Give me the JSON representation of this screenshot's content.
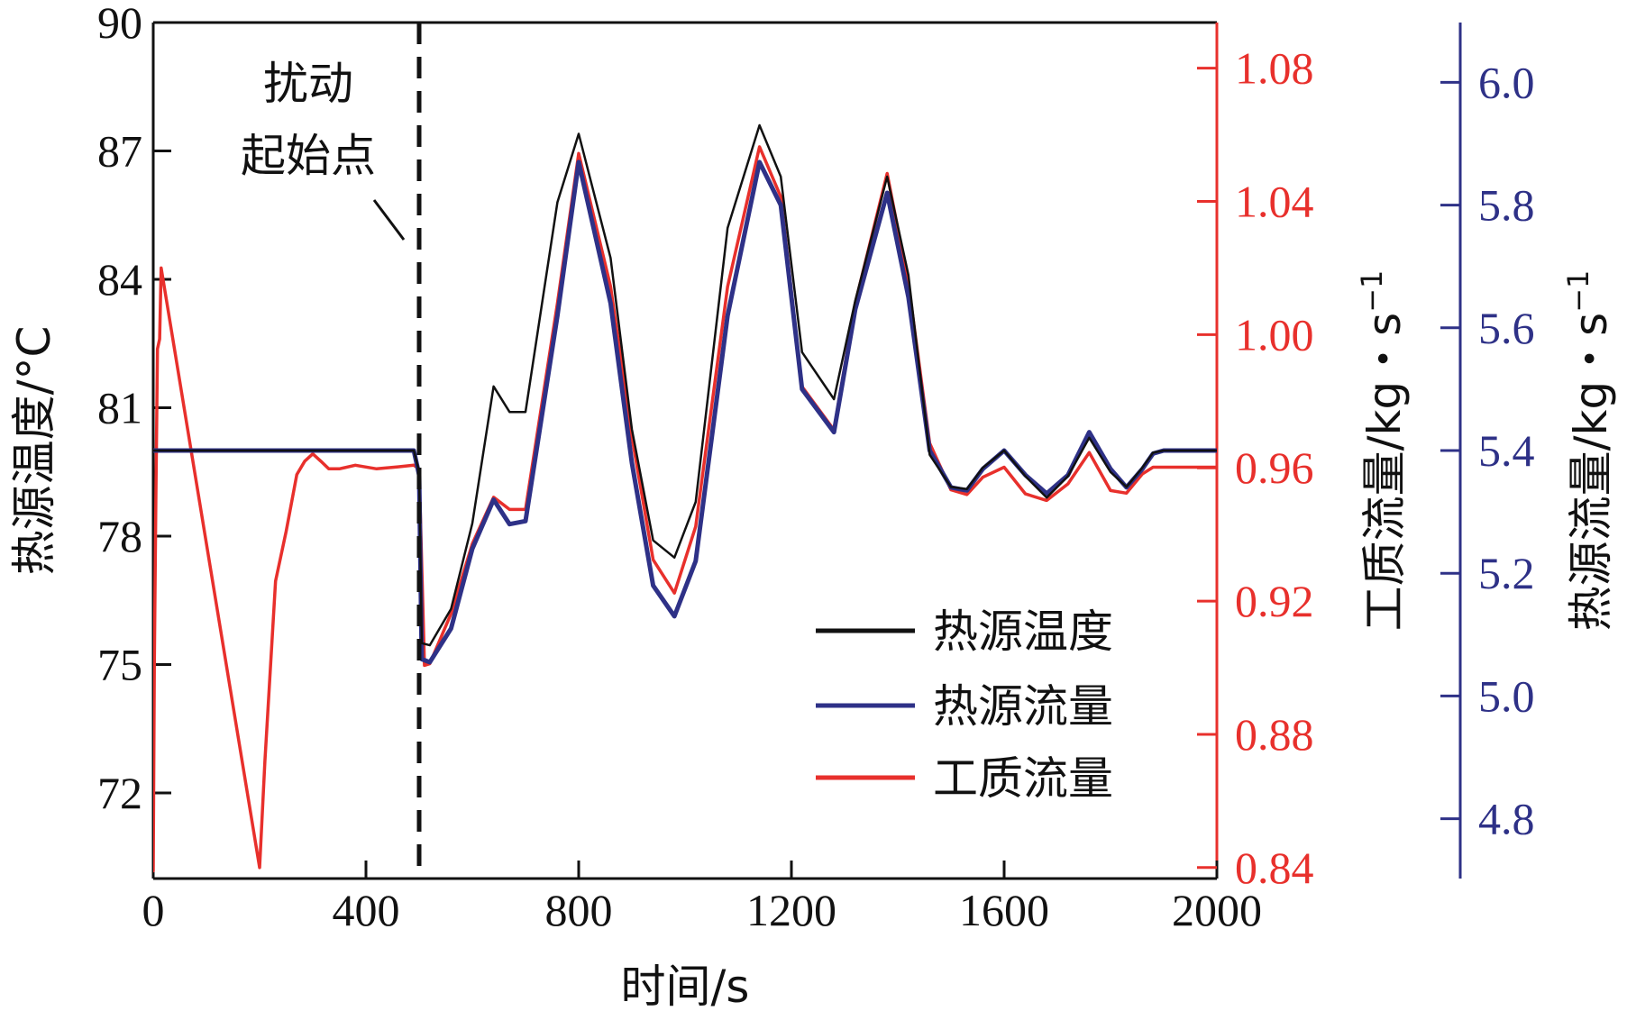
{
  "chart_data": {
    "type": "line",
    "title": "",
    "xlabel": "时间/s",
    "x_ticks": [
      "0",
      "400",
      "800",
      "1200",
      "1600",
      "2000"
    ],
    "xlim": [
      0,
      2000
    ],
    "axes": {
      "left": {
        "label": "热源温度/°C",
        "ylim": [
          70,
          90
        ],
        "ticks": [
          "72",
          "75",
          "78",
          "81",
          "84",
          "87",
          "90"
        ],
        "color": "#111111"
      },
      "right1": {
        "label": "工质流量/kg・s",
        "label_sup": "−1",
        "ylim": [
          0.8367,
          1.0937
        ],
        "ticks": [
          "0.84",
          "0.88",
          "0.92",
          "0.96",
          "1.00",
          "1.04",
          "1.08"
        ],
        "color": "#e8302c"
      },
      "right2": {
        "label": "热源流量/kg・s",
        "label_sup": "−1",
        "ylim": [
          4.7025,
          6.0975
        ],
        "ticks": [
          "4.8",
          "5.0",
          "5.2",
          "5.4",
          "5.6",
          "5.8",
          "6.0"
        ],
        "color": "#2e3187"
      }
    },
    "annotation": {
      "lines": [
        "扰动",
        "起始点"
      ],
      "x": 500
    },
    "legend": {
      "position": "bottom-right",
      "items": [
        {
          "name": "热源温度",
          "color": "#111111"
        },
        {
          "name": "热源流量",
          "color": "#2e3187"
        },
        {
          "name": "工质流量",
          "color": "#e8302c"
        }
      ]
    },
    "series": [
      {
        "name": "工质流量",
        "axis": "right1",
        "color": "#e8302c",
        "x": [
          0,
          2,
          5,
          8,
          12,
          15,
          200,
          210,
          230,
          250,
          270,
          285,
          300,
          315,
          330,
          350,
          380,
          420,
          460,
          490,
          500,
          510,
          520,
          560,
          600,
          640,
          670,
          700,
          760,
          800,
          860,
          900,
          940,
          980,
          1020,
          1080,
          1140,
          1180,
          1220,
          1280,
          1320,
          1380,
          1420,
          1460,
          1500,
          1530,
          1560,
          1600,
          1640,
          1680,
          1720,
          1760,
          1800,
          1830,
          1860,
          1880,
          1900,
          2000
        ],
        "y": [
          0.839,
          0.9,
          0.95,
          0.9957,
          0.9987,
          1.02,
          0.84,
          0.872,
          0.926,
          0.941,
          0.958,
          0.962,
          0.9642,
          0.962,
          0.9597,
          0.9597,
          0.9608,
          0.9597,
          0.9603,
          0.9608,
          0.9597,
          0.9007,
          0.9012,
          0.9162,
          0.9372,
          0.9512,
          0.9475,
          0.9475,
          1.0094,
          1.0544,
          1.0144,
          0.9694,
          0.9324,
          0.9224,
          0.9424,
          1.0144,
          1.0564,
          1.0414,
          0.9844,
          0.9714,
          1.0094,
          1.0484,
          1.0154,
          0.9674,
          0.9534,
          0.952,
          0.9572,
          0.9602,
          0.9522,
          0.9502,
          0.9552,
          0.9646,
          0.9532,
          0.9524,
          0.9582,
          0.9602,
          0.9602,
          0.9602
        ]
      },
      {
        "name": "热源流量",
        "axis": "right2",
        "color": "#2e3187",
        "x": [
          0,
          450,
          490,
          500,
          505,
          520,
          560,
          600,
          640,
          670,
          700,
          760,
          800,
          860,
          900,
          940,
          980,
          1020,
          1080,
          1140,
          1180,
          1220,
          1280,
          1320,
          1380,
          1420,
          1460,
          1500,
          1530,
          1560,
          1600,
          1640,
          1680,
          1720,
          1760,
          1800,
          1830,
          1860,
          1880,
          1900,
          2000
        ],
        "y": [
          5.4,
          5.4,
          5.4,
          5.36,
          5.06,
          5.055,
          5.11,
          5.24,
          5.32,
          5.28,
          5.285,
          5.62,
          5.87,
          5.64,
          5.38,
          5.18,
          5.13,
          5.22,
          5.62,
          5.87,
          5.8,
          5.5,
          5.43,
          5.63,
          5.82,
          5.65,
          5.4,
          5.34,
          5.335,
          5.37,
          5.4,
          5.36,
          5.33,
          5.36,
          5.43,
          5.37,
          5.34,
          5.37,
          5.395,
          5.4,
          5.4
        ]
      },
      {
        "name": "热源温度",
        "axis": "left",
        "color": "#111111",
        "x": [
          0,
          450,
          490,
          500,
          505,
          520,
          560,
          600,
          640,
          670,
          700,
          760,
          800,
          860,
          900,
          940,
          980,
          1020,
          1080,
          1140,
          1180,
          1220,
          1280,
          1320,
          1380,
          1420,
          1460,
          1500,
          1530,
          1560,
          1600,
          1640,
          1680,
          1720,
          1760,
          1800,
          1830,
          1860,
          1880,
          1900,
          2000
        ],
        "y": [
          80.0,
          80.0,
          80.0,
          79.5,
          75.5,
          75.45,
          76.3,
          78.3,
          81.5,
          80.9,
          80.9,
          85.8,
          87.4,
          84.5,
          80.5,
          77.9,
          77.5,
          78.8,
          85.2,
          87.6,
          86.4,
          82.3,
          81.2,
          83.5,
          86.4,
          84.1,
          79.9,
          79.15,
          79.1,
          79.6,
          80.0,
          79.4,
          78.9,
          79.4,
          80.3,
          79.5,
          79.15,
          79.6,
          79.95,
          80.0,
          80.0
        ]
      }
    ]
  }
}
